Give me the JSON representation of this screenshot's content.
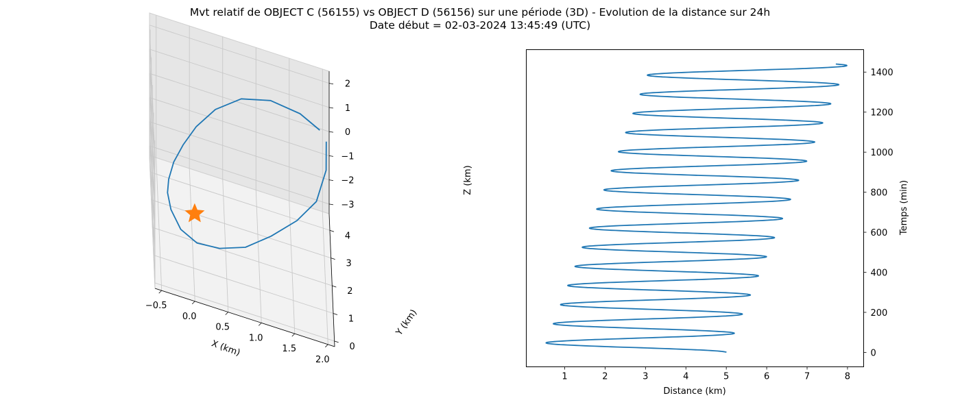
{
  "figure": {
    "title_line1": "Mvt relatif de OBJECT C (56155) vs OBJECT D (56156) sur une période (3D) - Evolution de la distance sur 24h",
    "title_line2": "Date début = 02-03-2024 13:45:49 (UTC)"
  },
  "chart_data": [
    {
      "type": "line3d",
      "xlabel": "X (km)",
      "ylabel": "Y (km)",
      "zlabel": "Z (km)",
      "xticks": [
        "−0.5",
        "0.0",
        "0.5",
        "1.0",
        "1.5",
        "2.0"
      ],
      "yticks": [
        "0",
        "1",
        "2",
        "3",
        "4"
      ],
      "zticks": [
        "2",
        "1",
        "0",
        "−1",
        "−2",
        "−3"
      ],
      "xlim": [
        -0.6,
        2.1
      ],
      "ylim": [
        -0.2,
        4.6
      ],
      "zlim": [
        -3.4,
        2.5
      ],
      "grid": true,
      "series": [
        {
          "color": "#1f77b4",
          "marker": "none",
          "points": [
            [
              2.05,
              4.2,
              0.0
            ],
            [
              2.05,
              4.3,
              -1.3
            ],
            [
              1.9,
              4.1,
              -2.5
            ],
            [
              1.6,
              3.7,
              -3.1
            ],
            [
              1.2,
              3.0,
              -3.3
            ],
            [
              0.8,
              2.2,
              -3.2
            ],
            [
              0.4,
              1.5,
              -2.8
            ],
            [
              0.05,
              0.9,
              -2.2
            ],
            [
              -0.2,
              0.5,
              -1.4
            ],
            [
              -0.35,
              0.4,
              -0.6
            ],
            [
              -0.4,
              0.45,
              0.0
            ],
            [
              -0.38,
              0.6,
              0.4
            ],
            [
              -0.3,
              0.85,
              0.9
            ],
            [
              -0.15,
              1.2,
              1.35
            ],
            [
              0.05,
              1.65,
              1.75
            ],
            [
              0.35,
              2.25,
              2.05
            ],
            [
              0.75,
              2.9,
              2.1
            ],
            [
              1.2,
              3.45,
              1.8
            ],
            [
              1.65,
              3.85,
              1.2
            ],
            [
              1.95,
              4.1,
              0.5
            ]
          ]
        },
        {
          "color": "#ff7f0e",
          "marker": "star",
          "points": [
            [
              0.0,
              0.0,
              0.0
            ]
          ]
        }
      ]
    },
    {
      "type": "line",
      "xlabel": "Distance (km)",
      "ylabel": "Temps (min)",
      "xlim": [
        0.05,
        8.4
      ],
      "ylim": [
        -72,
        1512
      ],
      "xticks": [
        1,
        2,
        3,
        4,
        5,
        6,
        7,
        8
      ],
      "yticks": [
        0,
        200,
        400,
        600,
        800,
        1000,
        1200,
        1400
      ],
      "yaxis_position": "right",
      "grid": false,
      "series": [
        {
          "color": "#1f77b4",
          "t_range": [
            0,
            1440
          ],
          "period_min": 95.5,
          "min_distance_start": 0.45,
          "min_distance_end": 3.15,
          "max_distance_start": 5.0,
          "max_distance_end": 8.0,
          "start_distance": 4.95
        }
      ]
    }
  ]
}
